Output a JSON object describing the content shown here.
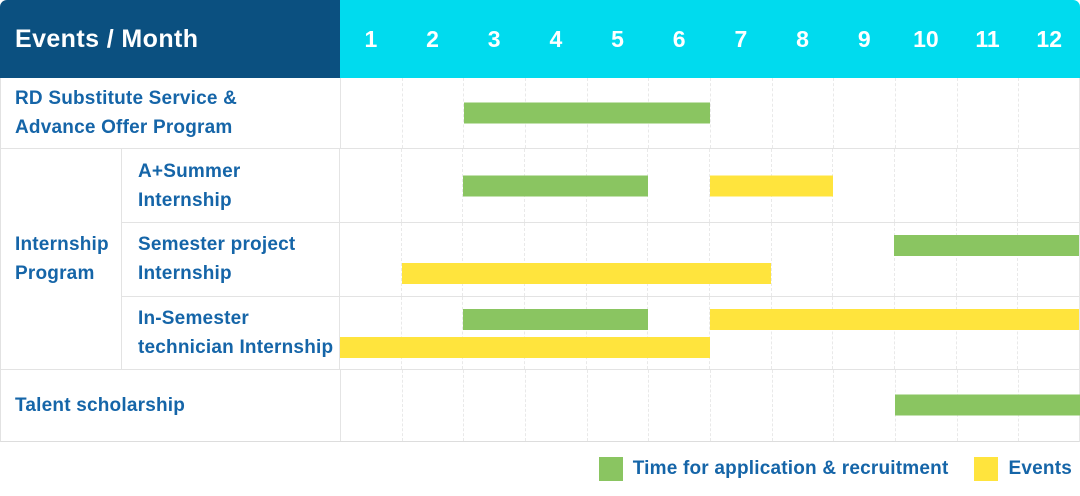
{
  "colors": {
    "header_bg": "#0B5080",
    "months_bg": "#00DBEE",
    "header_text": "#FFFFFF",
    "label_text": "#1565A8",
    "application_bar": "#8AC561",
    "event_bar": "#FFE43D",
    "gridline": "#E9E9E9",
    "row_border": "#E3E3E3"
  },
  "header": {
    "title": "Events / Month",
    "months": [
      "1",
      "2",
      "3",
      "4",
      "5",
      "6",
      "7",
      "8",
      "9",
      "10",
      "11",
      "12"
    ]
  },
  "groups": {
    "internship-program": {
      "label_lines": [
        "Internship",
        "Program"
      ]
    }
  },
  "rows": [
    {
      "id": "rd-substitute-advance-offer",
      "group": null,
      "label_lines": [
        "RD Substitute Service &",
        "Advance Offer Program"
      ],
      "bar_lines": 1,
      "bars": [
        {
          "kind": "application",
          "start_month": 3,
          "end_month": 6,
          "line": 1
        }
      ]
    },
    {
      "id": "a-plus-summer-internship",
      "group": "internship-program",
      "label_lines": [
        "A+Summer",
        "Internship"
      ],
      "bar_lines": 1,
      "bars": [
        {
          "kind": "application",
          "start_month": 3,
          "end_month": 5,
          "line": 1
        },
        {
          "kind": "event",
          "start_month": 7,
          "end_month": 8,
          "line": 1
        }
      ]
    },
    {
      "id": "semester-project-internship",
      "group": "internship-program",
      "label_lines": [
        "Semester project",
        "Internship"
      ],
      "bar_lines": 2,
      "bars": [
        {
          "kind": "application",
          "start_month": 10,
          "end_month": 12,
          "line": 1
        },
        {
          "kind": "event",
          "start_month": 2,
          "end_month": 7,
          "line": 2
        }
      ]
    },
    {
      "id": "in-semester-technician-internship",
      "group": "internship-program",
      "label_lines": [
        "In-Semester",
        "technician Internship"
      ],
      "bar_lines": 2,
      "bars": [
        {
          "kind": "application",
          "start_month": 3,
          "end_month": 5,
          "line": 1
        },
        {
          "kind": "event",
          "start_month": 7,
          "end_month": 12,
          "line": 1
        },
        {
          "kind": "event",
          "start_month": 1,
          "end_month": 6,
          "line": 2
        }
      ]
    },
    {
      "id": "talent-scholarship",
      "group": null,
      "label_lines": [
        "Talent scholarship"
      ],
      "bar_lines": 1,
      "bars": [
        {
          "kind": "application",
          "start_month": 10,
          "end_month": 12,
          "line": 1
        }
      ]
    }
  ],
  "legend": {
    "items": [
      {
        "kind": "application",
        "label": "Time for application & recruitment"
      },
      {
        "kind": "event",
        "label": "Events"
      }
    ]
  },
  "chart_data": {
    "type": "bar",
    "variant": "gantt-timeline",
    "title": "Events / Month",
    "xlabel": "Month",
    "x_ticks": [
      1,
      2,
      3,
      4,
      5,
      6,
      7,
      8,
      9,
      10,
      11,
      12
    ],
    "x_range": [
      1,
      12
    ],
    "grid": "vertical-dashed",
    "legend_position": "bottom-right",
    "legend": [
      {
        "name": "Time for application & recruitment",
        "color": "#8AC561"
      },
      {
        "name": "Events",
        "color": "#FFE43D"
      }
    ],
    "tasks": [
      {
        "group": null,
        "label": "RD Substitute Service & Advance Offer Program",
        "bars": [
          {
            "series": "Time for application & recruitment",
            "start_month": 3,
            "end_month": 6
          }
        ]
      },
      {
        "group": "Internship Program",
        "label": "A+Summer Internship",
        "bars": [
          {
            "series": "Time for application & recruitment",
            "start_month": 3,
            "end_month": 5
          },
          {
            "series": "Events",
            "start_month": 7,
            "end_month": 8
          }
        ]
      },
      {
        "group": "Internship Program",
        "label": "Semester project Internship",
        "bars": [
          {
            "series": "Time for application & recruitment",
            "start_month": 10,
            "end_month": 12
          },
          {
            "series": "Events",
            "start_month": 2,
            "end_month": 7
          }
        ]
      },
      {
        "group": "Internship Program",
        "label": "In-Semester technician Internship",
        "bars": [
          {
            "series": "Time for application & recruitment",
            "start_month": 3,
            "end_month": 5
          },
          {
            "series": "Events",
            "start_month": 7,
            "end_month": 12
          },
          {
            "series": "Events",
            "start_month": 1,
            "end_month": 6
          }
        ]
      },
      {
        "group": null,
        "label": "Talent scholarship",
        "bars": [
          {
            "series": "Time for application & recruitment",
            "start_month": 10,
            "end_month": 12
          }
        ]
      }
    ]
  }
}
